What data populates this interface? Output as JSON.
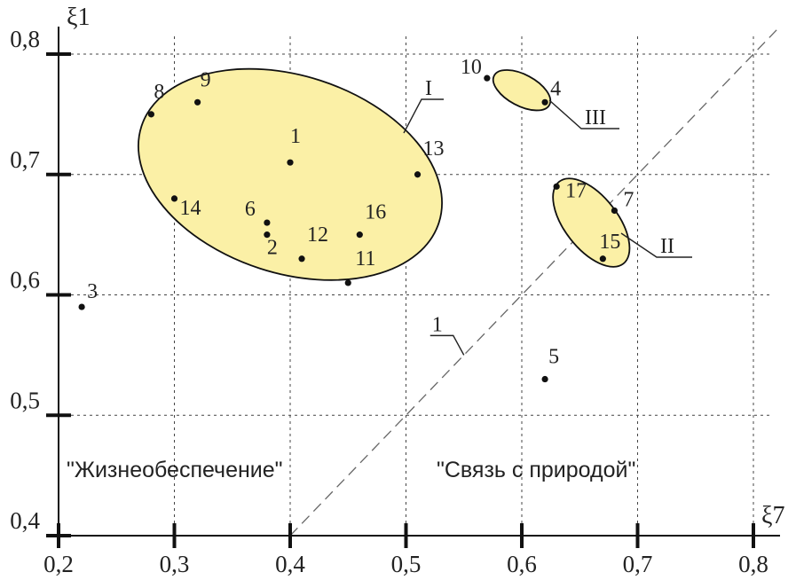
{
  "chart_data": {
    "type": "scatter",
    "xlabel": "ξ7",
    "ylabel": "ξ1",
    "xlim": [
      0.2,
      0.8
    ],
    "ylim": [
      0.4,
      0.8
    ],
    "grid": true,
    "x_ticks": [
      "0,2",
      "0,3",
      "0,4",
      "0,5",
      "0,6",
      "0,7",
      "0,8"
    ],
    "y_ticks": [
      "0,4",
      "0,5",
      "0,6",
      "0,7",
      "0,8"
    ],
    "points": [
      {
        "label": "1",
        "x": 0.4,
        "y": 0.71
      },
      {
        "label": "2",
        "x": 0.38,
        "y": 0.65
      },
      {
        "label": "3",
        "x": 0.22,
        "y": 0.59
      },
      {
        "label": "4",
        "x": 0.62,
        "y": 0.76
      },
      {
        "label": "5",
        "x": 0.62,
        "y": 0.53
      },
      {
        "label": "6",
        "x": 0.38,
        "y": 0.66
      },
      {
        "label": "7",
        "x": 0.68,
        "y": 0.67
      },
      {
        "label": "8",
        "x": 0.28,
        "y": 0.75
      },
      {
        "label": "9",
        "x": 0.32,
        "y": 0.76
      },
      {
        "label": "10",
        "x": 0.57,
        "y": 0.78
      },
      {
        "label": "11",
        "x": 0.45,
        "y": 0.61
      },
      {
        "label": "12",
        "x": 0.41,
        "y": 0.63
      },
      {
        "label": "13",
        "x": 0.51,
        "y": 0.7
      },
      {
        "label": "14",
        "x": 0.3,
        "y": 0.68
      },
      {
        "label": "15",
        "x": 0.67,
        "y": 0.63
      },
      {
        "label": "16",
        "x": 0.46,
        "y": 0.65
      },
      {
        "label": "17",
        "x": 0.63,
        "y": 0.69
      }
    ],
    "clusters": [
      {
        "label": "I",
        "cx": 0.4,
        "cy": 0.7,
        "rx": 0.135,
        "ry": 0.082,
        "rotate": 18
      },
      {
        "label": "II",
        "cx": 0.66,
        "cy": 0.66,
        "rx": 0.045,
        "ry": 0.022,
        "rotate": 52
      },
      {
        "label": "III",
        "cx": 0.6,
        "cy": 0.77,
        "rx": 0.027,
        "ry": 0.013,
        "rotate": 28
      }
    ],
    "reference_line": {
      "label": "1",
      "from": [
        0.4,
        0.4
      ],
      "to": [
        0.82,
        0.82
      ]
    },
    "annotations": {
      "left_region": "\"Жизнеобеспечение\"",
      "right_region": "\"Связь с природой\""
    }
  },
  "colors": {
    "cluster_fill": "#fbf0a6",
    "axis": "#111111",
    "grid": "#444444"
  }
}
